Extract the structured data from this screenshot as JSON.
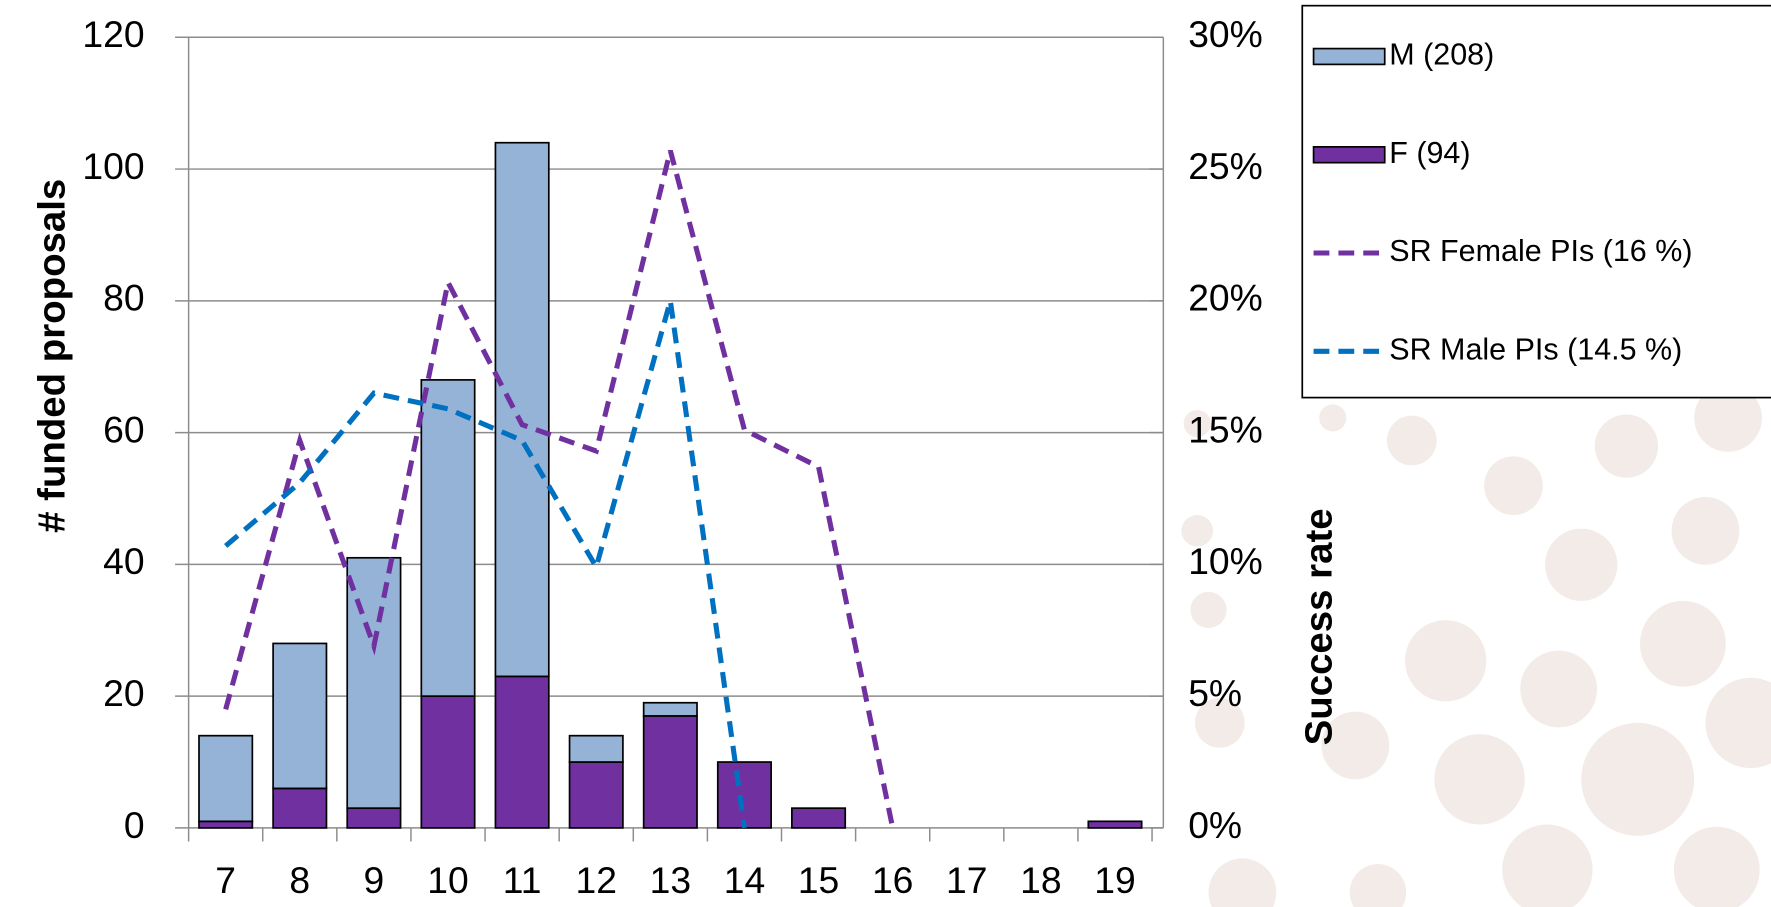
{
  "chart_data": {
    "type": "bar",
    "categories": [
      "7",
      "8",
      "9",
      "10",
      "11",
      "12",
      "13",
      "14",
      "15",
      "16",
      "17",
      "18",
      "19"
    ],
    "series": [
      {
        "name": "M (208)",
        "type": "bar",
        "color": "#95b3d7",
        "values": [
          13,
          22,
          38,
          48,
          81,
          4,
          2,
          0,
          0,
          0,
          0,
          0,
          0
        ]
      },
      {
        "name": "F (94)",
        "type": "bar",
        "color": "#7030a0",
        "values": [
          1,
          6,
          3,
          20,
          23,
          10,
          17,
          10,
          3,
          0,
          0,
          0,
          1
        ]
      },
      {
        "name": "SR Female PIs (16 %)",
        "type": "line",
        "axis": "y2",
        "color": "#7030a0",
        "values": [
          4.5,
          14.7,
          6.9,
          20.7,
          15.3,
          14.3,
          25.7,
          15.1,
          13.7,
          0,
          null,
          null,
          null
        ]
      },
      {
        "name": "SR Male PIs (14.5 %)",
        "type": "line",
        "axis": "y2",
        "color": "#0070c0",
        "values": [
          10.7,
          13.1,
          16.5,
          15.9,
          14.7,
          9.9,
          20.0,
          0,
          null,
          null,
          null,
          null,
          null
        ]
      }
    ],
    "stacked": true,
    "y_label": "# funded proposals",
    "y2_label": "Success rate",
    "ylim": [
      0,
      120
    ],
    "yticks": [
      0,
      20,
      40,
      60,
      80,
      100,
      120
    ],
    "y2lim": [
      0,
      30
    ],
    "y2ticks": [
      {
        "value": 0,
        "label": "0%"
      },
      {
        "value": 5,
        "label": "5%"
      },
      {
        "value": 10,
        "label": "10%"
      },
      {
        "value": 15,
        "label": "15%"
      },
      {
        "value": 20,
        "label": "20%"
      },
      {
        "value": 25,
        "label": "25%"
      },
      {
        "value": 30,
        "label": "30%"
      }
    ],
    "grid": true,
    "legend": "right"
  }
}
